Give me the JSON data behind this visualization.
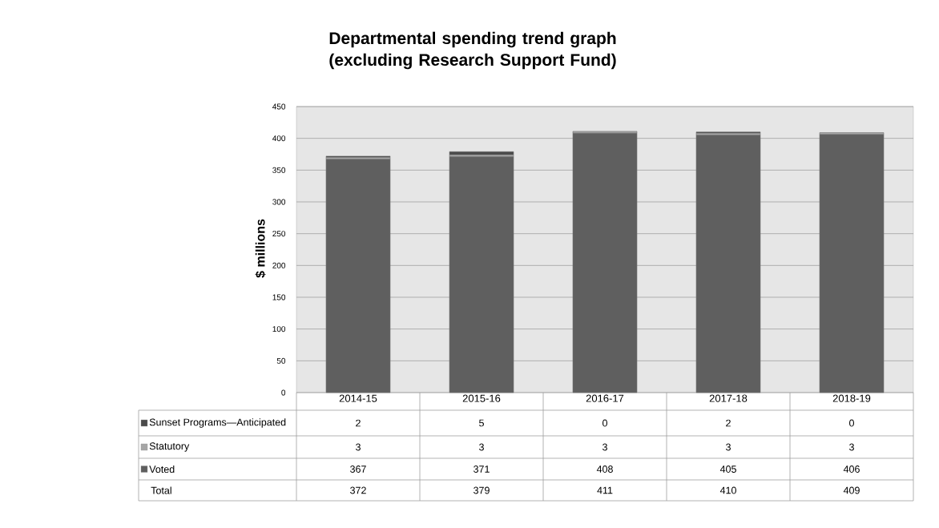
{
  "chart_data": {
    "type": "bar",
    "title": "Departmental spending trend graph (excluding Research Support Fund)",
    "ylabel": "$ millions",
    "categories": [
      "2014-15",
      "2015-16",
      "2016-17",
      "2017-18",
      "2018-19"
    ],
    "stacked": true,
    "series": [
      {
        "name": "Voted",
        "color": "#5f5f5f",
        "values": [
          367,
          371,
          408,
          405,
          406
        ]
      },
      {
        "name": "Statutory",
        "color": "#a6a6a6",
        "values": [
          3,
          3,
          3,
          3,
          3
        ]
      },
      {
        "name": "Sunset Programs—Anticipated",
        "color": "#4a4a4a",
        "values": [
          2,
          5,
          0,
          2,
          0
        ]
      }
    ],
    "annotations": [
      "Total",
      "372",
      "379",
      "411",
      "410",
      "409"
    ],
    "ylim": [
      0,
      450
    ],
    "yticks": [
      0,
      50,
      100,
      150,
      200,
      250,
      300,
      350,
      400,
      450
    ],
    "grid": "y",
    "legend": "bottom",
    "data_labels": true
  }
}
